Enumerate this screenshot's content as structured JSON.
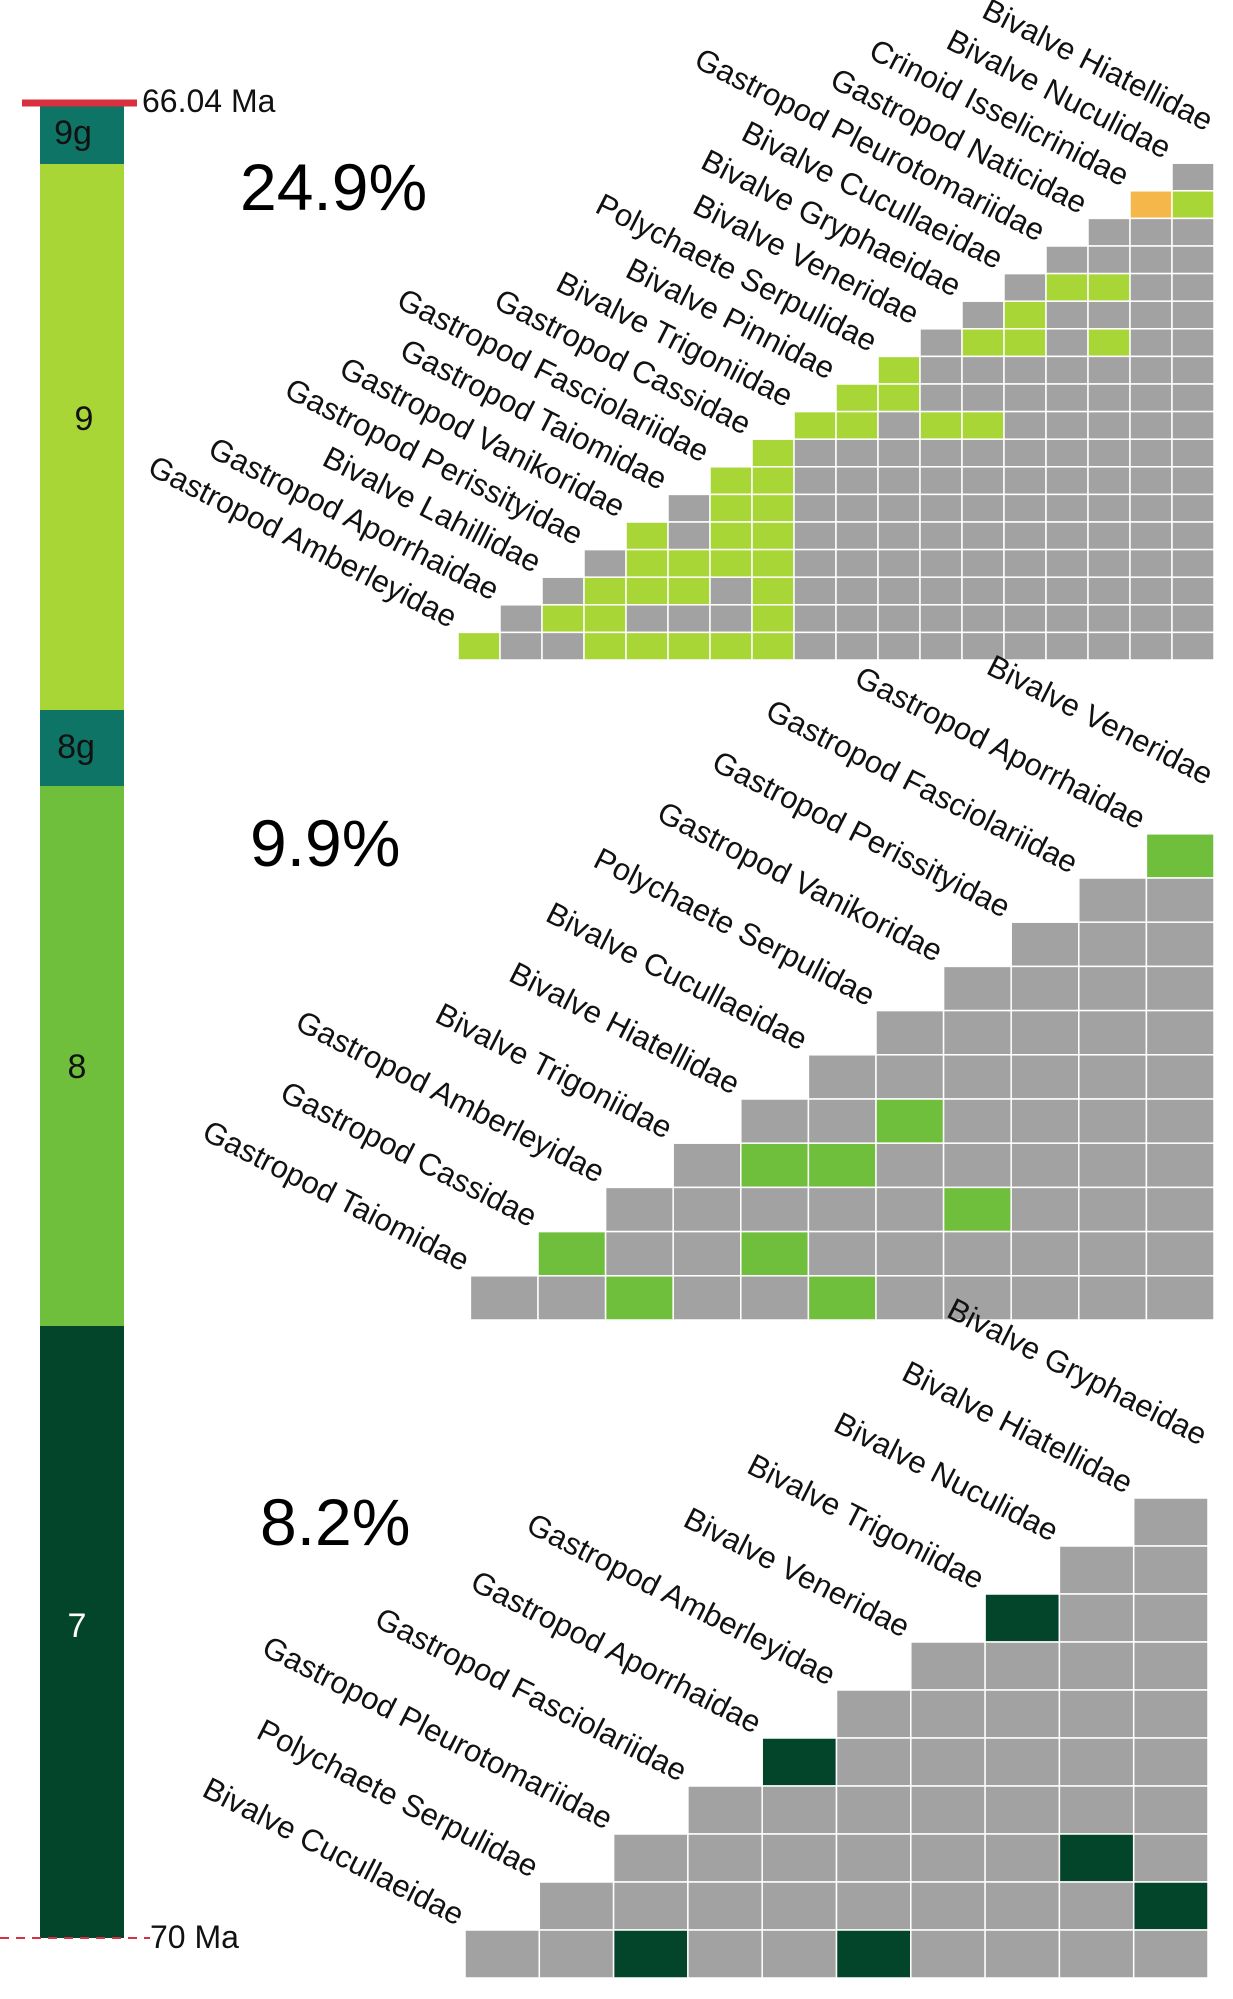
{
  "timescale": {
    "top_age": "66.04 Ma",
    "bottom_age": "70 Ma",
    "zones": [
      {
        "label": "9g",
        "color": "#0e7466",
        "text_color": "#111111"
      },
      {
        "label": "9",
        "color": "#a8d636",
        "text_color": "#111111"
      },
      {
        "label": "8g",
        "color": "#0e7466",
        "text_color": "#111111"
      },
      {
        "label": "8",
        "color": "#70bf3c",
        "text_color": "#111111"
      },
      {
        "label": "7",
        "color": "#03452a",
        "text_color": "#ffffff"
      }
    ],
    "boundary_color": "#d9303f"
  },
  "panels": [
    {
      "percent": "24.9%",
      "grid_color": "#a2a2a2",
      "highlight_color": "#a8d636",
      "taxa": [
        "Gastropod Amberleyidae",
        "Gastropod Aporrhaidae",
        "Bivalve Lahillidae",
        "Gastropod Perissityidae",
        "Gastropod Vanikoridae",
        "Gastropod Taiomidae",
        "Gastropod Fasciolariidae",
        "Gastropod Cassidae",
        "Bivalve Trigoniidae",
        "Bivalve Pinnidae",
        "Polychaete Serpulidae",
        "Bivalve Veneridae",
        "Bivalve Gryphaeidae",
        "Bivalve Cucullaeidae",
        "Gastropod Pleurotomariidae",
        "Gastropod Naticidae",
        "Crinoid Isselicrinidae",
        "Bivalve Nuculidae",
        "Bivalve Hiatellidae"
      ],
      "highlighted_pairs": [
        [
          0,
          1
        ],
        [
          0,
          4
        ],
        [
          0,
          5
        ],
        [
          0,
          6
        ],
        [
          0,
          7
        ],
        [
          0,
          8
        ],
        [
          1,
          3
        ],
        [
          1,
          4
        ],
        [
          1,
          8
        ],
        [
          2,
          4
        ],
        [
          2,
          5
        ],
        [
          2,
          6
        ],
        [
          2,
          8
        ],
        [
          3,
          5
        ],
        [
          3,
          6
        ],
        [
          3,
          7
        ],
        [
          3,
          8
        ],
        [
          4,
          5
        ],
        [
          4,
          7
        ],
        [
          4,
          8
        ],
        [
          5,
          7
        ],
        [
          5,
          8
        ],
        [
          6,
          7
        ],
        [
          6,
          8
        ],
        [
          7,
          8
        ],
        [
          8,
          9
        ],
        [
          8,
          10
        ],
        [
          8,
          12
        ],
        [
          8,
          13
        ],
        [
          9,
          10
        ],
        [
          9,
          11
        ],
        [
          10,
          11
        ],
        [
          11,
          13
        ],
        [
          11,
          14
        ],
        [
          11,
          16
        ],
        [
          12,
          14
        ],
        [
          13,
          15
        ],
        [
          13,
          16
        ],
        [
          16,
          18
        ]
      ],
      "special_pairs": [
        [
          16,
          17
        ]
      ],
      "special_color": "#f5b64a"
    },
    {
      "percent": "9.9%",
      "grid_color": "#a2a2a2",
      "highlight_color": "#70bf3c",
      "taxa": [
        "Gastropod Taiomidae",
        "Gastropod Cassidae",
        "Gastropod Amberleyidae",
        "Bivalve Trigoniidae",
        "Bivalve Hiatellidae",
        "Bivalve Cucullaeidae",
        "Polychaete Serpulidae",
        "Gastropod Vanikoridae",
        "Gastropod Perissityidae",
        "Gastropod Fasciolariidae",
        "Gastropod Aporrhaidae",
        "Bivalve Veneridae"
      ],
      "highlighted_pairs": [
        [
          0,
          3
        ],
        [
          0,
          6
        ],
        [
          1,
          2
        ],
        [
          1,
          5
        ],
        [
          2,
          8
        ],
        [
          3,
          5
        ],
        [
          3,
          6
        ],
        [
          4,
          7
        ],
        [
          10,
          11
        ]
      ],
      "special_pairs": [],
      "special_color": "#f5b64a"
    },
    {
      "percent": "8.2%",
      "grid_color": "#a2a2a2",
      "highlight_color": "#03452a",
      "taxa": [
        "Bivalve Cucullaeidae",
        "Polychaete Serpulidae",
        "Gastropod Pleurotomariidae",
        "Gastropod Fasciolariidae",
        "Gastropod Aporrhaidae",
        "Gastropod Amberleyidae",
        "Bivalve Veneridae",
        "Bivalve Trigoniidae",
        "Bivalve Nuculidae",
        "Bivalve Hiatellidae",
        "Bivalve Gryphaeidae"
      ],
      "highlighted_pairs": [
        [
          0,
          3
        ],
        [
          0,
          6
        ],
        [
          1,
          10
        ],
        [
          2,
          9
        ],
        [
          4,
          5
        ],
        [
          7,
          8
        ]
      ],
      "special_pairs": [],
      "special_color": "#f5b64a"
    }
  ]
}
